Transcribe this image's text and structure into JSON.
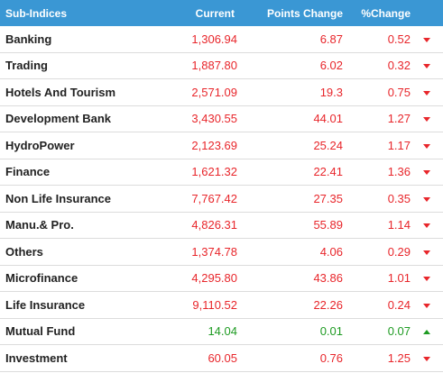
{
  "header": {
    "col_name": "Sub-Indices",
    "col_current": "Current",
    "col_points": "Points Change",
    "col_pct": "%Change"
  },
  "colors": {
    "header_bg": "#3a97d4",
    "down": "#e8262b",
    "up": "#1e9b22"
  },
  "rows": [
    {
      "name": "Banking",
      "current": "1,306.94",
      "points": "6.87",
      "pct": "0.52",
      "direction": "down",
      "icon": "arrow-down-icon"
    },
    {
      "name": "Trading",
      "current": "1,887.80",
      "points": "6.02",
      "pct": "0.32",
      "direction": "down",
      "icon": "arrow-down-icon"
    },
    {
      "name": "Hotels And Tourism",
      "current": "2,571.09",
      "points": "19.3",
      "pct": "0.75",
      "direction": "down",
      "icon": "arrow-down-icon"
    },
    {
      "name": "Development Bank",
      "current": "3,430.55",
      "points": "44.01",
      "pct": "1.27",
      "direction": "down",
      "icon": "arrow-down-icon"
    },
    {
      "name": "HydroPower",
      "current": "2,123.69",
      "points": "25.24",
      "pct": "1.17",
      "direction": "down",
      "icon": "arrow-down-icon"
    },
    {
      "name": "Finance",
      "current": "1,621.32",
      "points": "22.41",
      "pct": "1.36",
      "direction": "down",
      "icon": "arrow-down-icon"
    },
    {
      "name": "Non Life Insurance",
      "current": "7,767.42",
      "points": "27.35",
      "pct": "0.35",
      "direction": "down",
      "icon": "arrow-down-icon"
    },
    {
      "name": "Manu.& Pro.",
      "current": "4,826.31",
      "points": "55.89",
      "pct": "1.14",
      "direction": "down",
      "icon": "arrow-down-icon"
    },
    {
      "name": "Others",
      "current": "1,374.78",
      "points": "4.06",
      "pct": "0.29",
      "direction": "down",
      "icon": "arrow-down-icon"
    },
    {
      "name": "Microfinance",
      "current": "4,295.80",
      "points": "43.86",
      "pct": "1.01",
      "direction": "down",
      "icon": "arrow-down-icon"
    },
    {
      "name": "Life Insurance",
      "current": "9,110.52",
      "points": "22.26",
      "pct": "0.24",
      "direction": "down",
      "icon": "arrow-down-icon"
    },
    {
      "name": "Mutual Fund",
      "current": "14.04",
      "points": "0.01",
      "pct": "0.07",
      "direction": "up",
      "icon": "arrow-up-icon"
    },
    {
      "name": "Investment",
      "current": "60.05",
      "points": "0.76",
      "pct": "1.25",
      "direction": "down",
      "icon": "arrow-down-icon"
    }
  ]
}
